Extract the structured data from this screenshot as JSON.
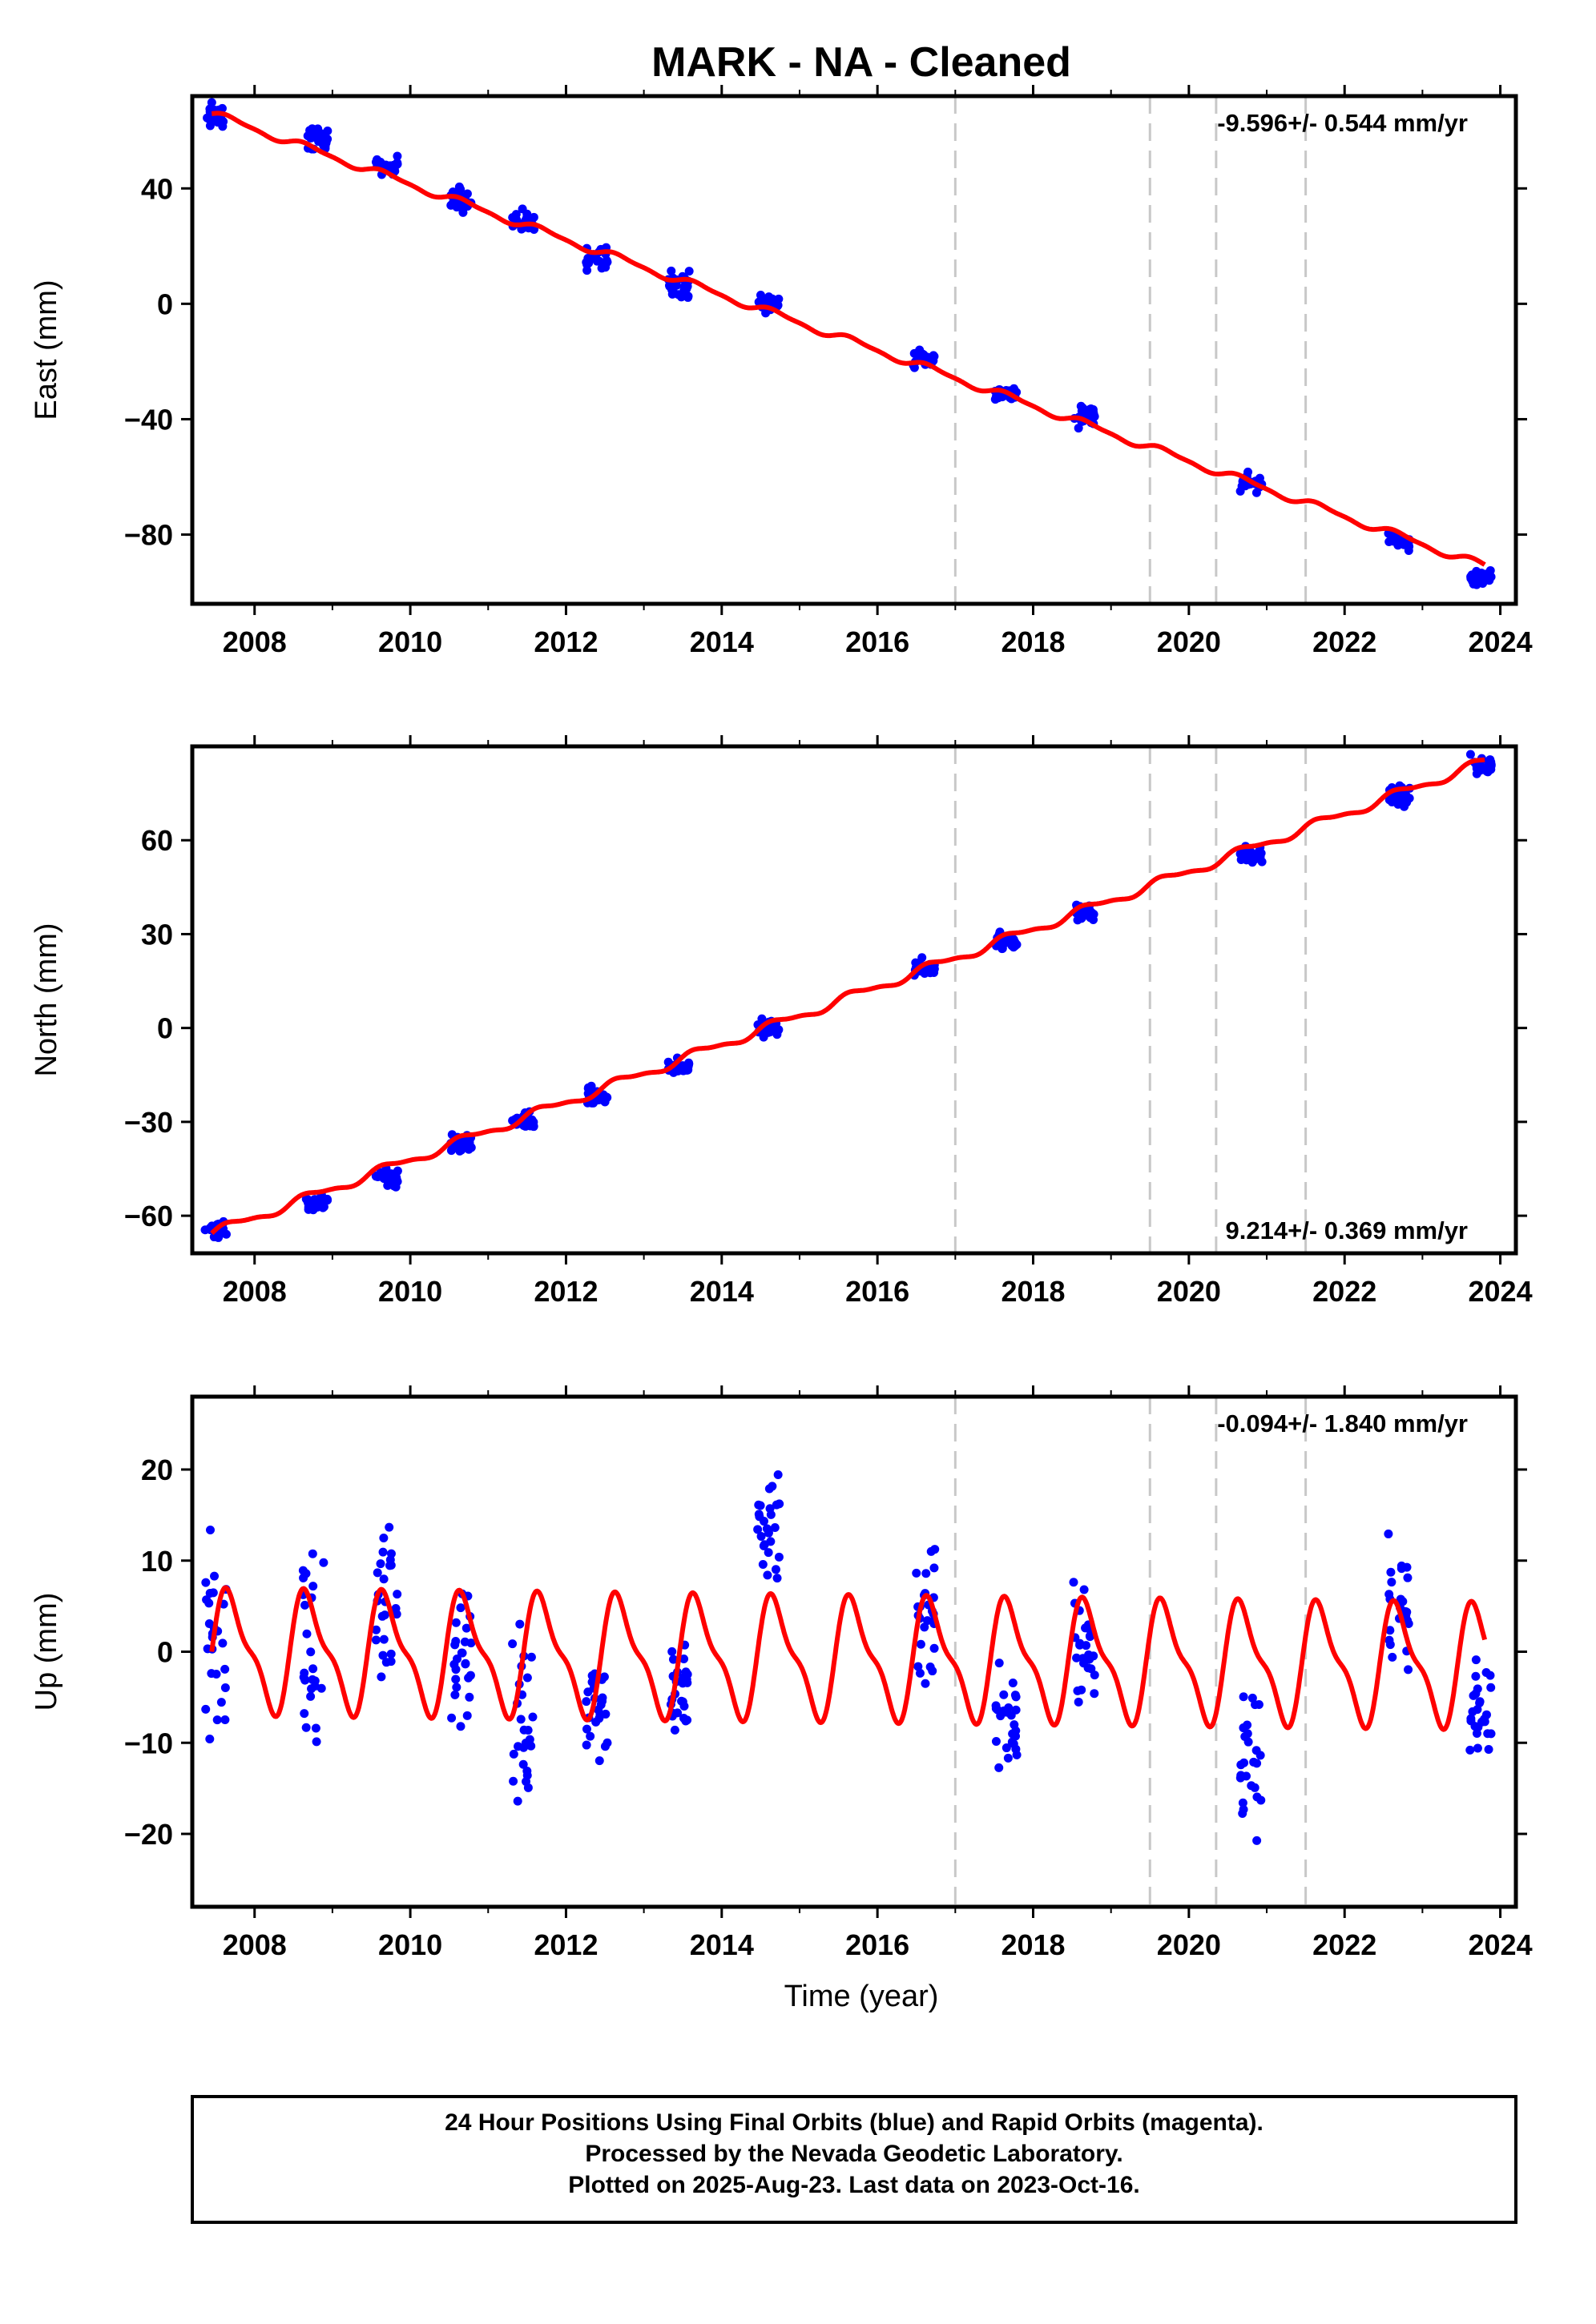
{
  "title": "MARK  - NA - Cleaned",
  "x_axis_label": "Time (year)",
  "caption": [
    "24 Hour Positions Using Final Orbits (blue) and Rapid Orbits (magenta).",
    "Processed by the Nevada Geodetic Laboratory.",
    "Plotted on 2025-Aug-23. Last data on 2023-Oct-16."
  ],
  "colors": {
    "final_orbit_points": "#0000ff",
    "model_fit": "#ff0000",
    "event_lines": "#c8c8c8",
    "frame": "#000000"
  },
  "chart_data": [
    {
      "type": "scatter",
      "panel": "east",
      "ylabel": "East (mm)",
      "rate_label": "-9.596+/- 0.544 mm/yr",
      "rate_label_position": "top-right",
      "xlim": [
        2007.2,
        2024.2
      ],
      "ylim": [
        -104,
        72
      ],
      "xticks": [
        2008,
        2010,
        2012,
        2014,
        2016,
        2018,
        2020,
        2022,
        2024
      ],
      "yticks": [
        40,
        0,
        -40,
        -80
      ],
      "event_lines_x": [
        2017.0,
        2019.5,
        2020.35,
        2021.5
      ],
      "model": {
        "start_year": 2007.45,
        "start_value": 65.9,
        "rate": -9.596,
        "seasonal_amplitude": 1.2
      },
      "clusters": [
        {
          "t": 2007.5,
          "mean": 65,
          "spread": 3
        },
        {
          "t": 2008.8,
          "mean": 57,
          "spread": 3
        },
        {
          "t": 2009.7,
          "mean": 48,
          "spread": 2
        },
        {
          "t": 2010.65,
          "mean": 36,
          "spread": 3
        },
        {
          "t": 2011.45,
          "mean": 28,
          "spread": 3
        },
        {
          "t": 2012.4,
          "mean": 16,
          "spread": 3
        },
        {
          "t": 2013.45,
          "mean": 7,
          "spread": 3
        },
        {
          "t": 2014.6,
          "mean": 0,
          "spread": 3
        },
        {
          "t": 2016.6,
          "mean": -19,
          "spread": 2
        },
        {
          "t": 2017.65,
          "mean": -31,
          "spread": 2
        },
        {
          "t": 2018.65,
          "mean": -39,
          "spread": 3
        },
        {
          "t": 2020.8,
          "mean": -62,
          "spread": 2
        },
        {
          "t": 2022.7,
          "mean": -82,
          "spread": 2
        },
        {
          "t": 2023.75,
          "mean": -95,
          "spread": 2
        }
      ]
    },
    {
      "type": "scatter",
      "panel": "north",
      "ylabel": "North (mm)",
      "rate_label": "9.214+/- 0.369 mm/yr",
      "rate_label_position": "bottom-right",
      "xlim": [
        2007.2,
        2024.2
      ],
      "ylim": [
        -72,
        90
      ],
      "xticks": [
        2008,
        2010,
        2012,
        2014,
        2016,
        2018,
        2020,
        2022,
        2024
      ],
      "yticks": [
        60,
        30,
        0,
        -30,
        -60
      ],
      "event_lines_x": [
        2017.0,
        2019.5,
        2020.35,
        2021.5
      ],
      "model": {
        "start_year": 2007.45,
        "start_value": -65.6,
        "rate": 9.214,
        "seasonal_amplitude": 1.4
      },
      "clusters": [
        {
          "t": 2007.5,
          "mean": -64,
          "spread": 2
        },
        {
          "t": 2008.8,
          "mean": -56,
          "spread": 2
        },
        {
          "t": 2009.7,
          "mean": -48,
          "spread": 2
        },
        {
          "t": 2010.65,
          "mean": -37,
          "spread": 2
        },
        {
          "t": 2011.45,
          "mean": -30,
          "spread": 2
        },
        {
          "t": 2012.4,
          "mean": -22,
          "spread": 2
        },
        {
          "t": 2013.45,
          "mean": -13,
          "spread": 2
        },
        {
          "t": 2014.6,
          "mean": 0,
          "spread": 2
        },
        {
          "t": 2016.6,
          "mean": 19,
          "spread": 2
        },
        {
          "t": 2017.65,
          "mean": 28,
          "spread": 2
        },
        {
          "t": 2018.65,
          "mean": 37,
          "spread": 2
        },
        {
          "t": 2020.8,
          "mean": 55,
          "spread": 2
        },
        {
          "t": 2022.7,
          "mean": 74,
          "spread": 2
        },
        {
          "t": 2023.75,
          "mean": 84,
          "spread": 2
        }
      ]
    },
    {
      "type": "scatter",
      "panel": "up",
      "ylabel": "Up (mm)",
      "rate_label": "-0.094+/- 1.840 mm/yr",
      "rate_label_position": "top-right",
      "xlim": [
        2007.2,
        2024.2
      ],
      "ylim": [
        -28,
        28
      ],
      "xticks": [
        2008,
        2010,
        2012,
        2014,
        2016,
        2018,
        2020,
        2022,
        2024
      ],
      "yticks": [
        20,
        10,
        0,
        -10,
        -20
      ],
      "event_lines_x": [
        2017.0,
        2019.5,
        2020.35,
        2021.5
      ],
      "model": {
        "start_year": 2007.45,
        "start_value": 0,
        "rate": -0.094,
        "seasonal_amplitude": 6
      },
      "clusters": [
        {
          "t": 2007.5,
          "mean": 1,
          "spread": 8
        },
        {
          "t": 2008.75,
          "mean": 1,
          "spread": 8
        },
        {
          "t": 2009.7,
          "mean": 5,
          "spread": 6
        },
        {
          "t": 2010.65,
          "mean": 0,
          "spread": 5
        },
        {
          "t": 2011.45,
          "mean": -8,
          "spread": 7
        },
        {
          "t": 2012.4,
          "mean": -5,
          "spread": 5
        },
        {
          "t": 2013.45,
          "mean": -4,
          "spread": 4
        },
        {
          "t": 2014.6,
          "mean": 13,
          "spread": 6
        },
        {
          "t": 2016.6,
          "mean": 5,
          "spread": 6
        },
        {
          "t": 2017.65,
          "mean": -8,
          "spread": 5
        },
        {
          "t": 2018.65,
          "mean": 1,
          "spread": 6
        },
        {
          "t": 2020.8,
          "mean": -12,
          "spread": 6
        },
        {
          "t": 2022.7,
          "mean": 5,
          "spread": 5
        },
        {
          "t": 2023.75,
          "mean": -7,
          "spread": 5
        }
      ]
    }
  ]
}
